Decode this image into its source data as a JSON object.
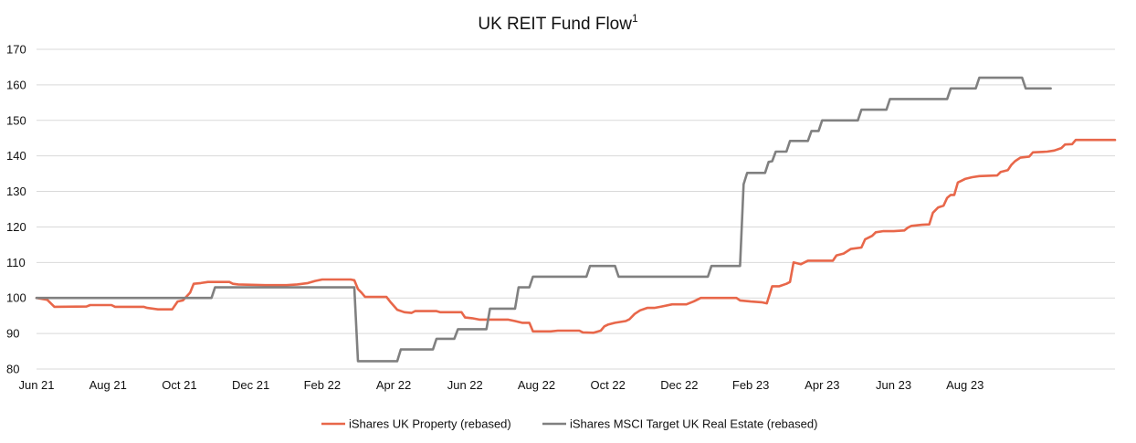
{
  "chart_data": {
    "type": "line",
    "title": "UK REIT Fund Flow",
    "title_superscript": "1",
    "xlabel": "",
    "ylabel": "",
    "x_ticks": [
      "Jun 21",
      "Aug 21",
      "Oct 21",
      "Dec 21",
      "Feb 22",
      "Apr 22",
      "Jun 22",
      "Aug 22",
      "Oct 22",
      "Dec 22",
      "Feb 23",
      "Apr 23",
      "Jun 23",
      "Aug 23"
    ],
    "y_ticks": [
      "80",
      "90",
      "100",
      "110",
      "120",
      "130",
      "140",
      "150",
      "160",
      "170"
    ],
    "ylim": [
      80,
      170
    ],
    "grid": "horizontal",
    "legend_position": "bottom",
    "series": [
      {
        "name": "iShares UK Property (rebased)",
        "color": "#e8674a",
        "points": [
          [
            0,
            100
          ],
          [
            0.3,
            99.5
          ],
          [
            0.5,
            97.5
          ],
          [
            1.4,
            97.6
          ],
          [
            1.5,
            98
          ],
          [
            2.1,
            98
          ],
          [
            2.2,
            97.5
          ],
          [
            3.0,
            97.5
          ],
          [
            3.1,
            97.2
          ],
          [
            3.4,
            96.8
          ],
          [
            3.8,
            96.8
          ],
          [
            3.95,
            99
          ],
          [
            4.1,
            99.3
          ],
          [
            4.3,
            101.5
          ],
          [
            4.4,
            104
          ],
          [
            4.6,
            104.2
          ],
          [
            4.8,
            104.5
          ],
          [
            5.4,
            104.5
          ],
          [
            5.5,
            104
          ],
          [
            5.65,
            103.8
          ],
          [
            6.4,
            103.6
          ],
          [
            7.0,
            103.6
          ],
          [
            7.3,
            103.8
          ],
          [
            7.6,
            104.2
          ],
          [
            7.8,
            104.8
          ],
          [
            8.0,
            105.2
          ],
          [
            8.8,
            105.2
          ],
          [
            8.9,
            105
          ],
          [
            9.0,
            102.5
          ],
          [
            9.1,
            101.5
          ],
          [
            9.2,
            100.3
          ],
          [
            9.8,
            100.3
          ],
          [
            9.9,
            99
          ],
          [
            10.1,
            96.7
          ],
          [
            10.3,
            96
          ],
          [
            10.5,
            95.8
          ],
          [
            10.6,
            96.3
          ],
          [
            11.2,
            96.3
          ],
          [
            11.3,
            96
          ],
          [
            11.9,
            96
          ],
          [
            12.0,
            94.5
          ],
          [
            12.2,
            94.3
          ],
          [
            12.4,
            93.9
          ],
          [
            13.2,
            93.9
          ],
          [
            13.4,
            93.5
          ],
          [
            13.6,
            93
          ],
          [
            13.8,
            93
          ],
          [
            13.9,
            90.6
          ],
          [
            14.4,
            90.6
          ],
          [
            14.6,
            90.8
          ],
          [
            15.2,
            90.8
          ],
          [
            15.3,
            90.3
          ],
          [
            15.6,
            90.2
          ],
          [
            15.8,
            90.8
          ],
          [
            15.9,
            92
          ],
          [
            16.0,
            92.5
          ],
          [
            16.2,
            93
          ],
          [
            16.5,
            93.5
          ],
          [
            16.6,
            94
          ],
          [
            16.75,
            95.5
          ],
          [
            16.9,
            96.5
          ],
          [
            17.1,
            97.2
          ],
          [
            17.3,
            97.2
          ],
          [
            17.5,
            97.6
          ],
          [
            17.8,
            98.2
          ],
          [
            18.2,
            98.2
          ],
          [
            18.4,
            99
          ],
          [
            18.6,
            100
          ],
          [
            19.6,
            100
          ],
          [
            19.7,
            99.3
          ],
          [
            20.0,
            99
          ],
          [
            20.3,
            98.8
          ],
          [
            20.45,
            98.5
          ],
          [
            20.6,
            103.3
          ],
          [
            20.8,
            103.3
          ],
          [
            21.0,
            104
          ],
          [
            21.1,
            104.5
          ],
          [
            21.2,
            110
          ],
          [
            21.4,
            109.5
          ],
          [
            21.6,
            110.5
          ],
          [
            22.3,
            110.5
          ],
          [
            22.4,
            112
          ],
          [
            22.6,
            112.5
          ],
          [
            22.8,
            113.8
          ],
          [
            23.1,
            114.2
          ],
          [
            23.2,
            116.5
          ],
          [
            23.4,
            117.5
          ],
          [
            23.5,
            118.5
          ],
          [
            23.7,
            118.8
          ],
          [
            24.0,
            118.8
          ],
          [
            24.3,
            119
          ],
          [
            24.4,
            119.8
          ],
          [
            24.5,
            120.3
          ],
          [
            24.8,
            120.6
          ],
          [
            25.0,
            120.7
          ],
          [
            25.1,
            124
          ],
          [
            25.25,
            125.5
          ],
          [
            25.4,
            126
          ],
          [
            25.5,
            128.2
          ],
          [
            25.6,
            129
          ],
          [
            25.7,
            129
          ],
          [
            25.8,
            132.5
          ],
          [
            25.9,
            133
          ],
          [
            26.0,
            133.5
          ],
          [
            26.2,
            134
          ],
          [
            26.4,
            134.3
          ],
          [
            26.9,
            134.5
          ],
          [
            27.0,
            135.5
          ],
          [
            27.2,
            136
          ],
          [
            27.3,
            137.5
          ],
          [
            27.4,
            138.5
          ],
          [
            27.55,
            139.5
          ],
          [
            27.8,
            139.8
          ],
          [
            27.9,
            141
          ],
          [
            28.3,
            141.2
          ],
          [
            28.5,
            141.5
          ],
          [
            28.7,
            142.2
          ],
          [
            28.8,
            143.2
          ],
          [
            29.0,
            143.3
          ],
          [
            29.1,
            144.5
          ],
          [
            29.5,
            144.5
          ],
          [
            29.8,
            144.5
          ],
          [
            30.2,
            144.5
          ]
        ]
      },
      {
        "name": "iShares MSCI Target UK Real Estate (rebased)",
        "color": "#808080",
        "points": [
          [
            0,
            100
          ],
          [
            4.9,
            100
          ],
          [
            5.0,
            103
          ],
          [
            8.9,
            103
          ],
          [
            9.0,
            82.2
          ],
          [
            10.1,
            82.2
          ],
          [
            10.2,
            85.5
          ],
          [
            11.1,
            85.5
          ],
          [
            11.2,
            88.5
          ],
          [
            11.7,
            88.5
          ],
          [
            11.8,
            91.2
          ],
          [
            12.6,
            91.2
          ],
          [
            12.7,
            97
          ],
          [
            13.4,
            97
          ],
          [
            13.5,
            103
          ],
          [
            13.8,
            103
          ],
          [
            13.9,
            106
          ],
          [
            15.4,
            106
          ],
          [
            15.5,
            109
          ],
          [
            16.2,
            109
          ],
          [
            16.3,
            106
          ],
          [
            18.8,
            106
          ],
          [
            18.9,
            109
          ],
          [
            19.7,
            109
          ],
          [
            19.8,
            132
          ],
          [
            19.9,
            135.2
          ],
          [
            20.4,
            135.2
          ],
          [
            20.5,
            138.3
          ],
          [
            20.6,
            138.5
          ],
          [
            20.7,
            141.2
          ],
          [
            21.0,
            141.2
          ],
          [
            21.1,
            144.2
          ],
          [
            21.6,
            144.2
          ],
          [
            21.7,
            147
          ],
          [
            21.9,
            147
          ],
          [
            22.0,
            150
          ],
          [
            23.0,
            150
          ],
          [
            23.1,
            153
          ],
          [
            23.8,
            153
          ],
          [
            23.9,
            156
          ],
          [
            25.5,
            156
          ],
          [
            25.6,
            159
          ],
          [
            26.3,
            159
          ],
          [
            26.4,
            162
          ],
          [
            27.6,
            162
          ],
          [
            27.7,
            159
          ],
          [
            28.4,
            159
          ]
        ]
      }
    ]
  }
}
